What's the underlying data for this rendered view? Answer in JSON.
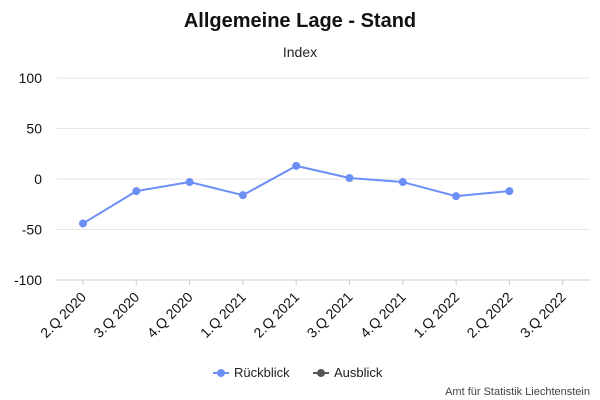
{
  "chart_data": {
    "type": "line",
    "title": "Allgemeine Lage - Stand",
    "subtitle": "Index",
    "categories": [
      "2.Q 2020",
      "3.Q 2020",
      "4.Q 2020",
      "1.Q 2021",
      "2.Q 2021",
      "3.Q 2021",
      "4.Q 2021",
      "1.Q 2022",
      "2.Q 2022",
      "3.Q 2022"
    ],
    "y_ticks": [
      "100",
      "50",
      "0",
      "-50",
      "-100"
    ],
    "ylim": [
      -100,
      100
    ],
    "grid": true,
    "legend_position": "bottom-center",
    "series": [
      {
        "name": "Rückblick",
        "color": "#6b8ff5",
        "values": [
          -44,
          -12,
          -3,
          -16,
          13,
          1,
          -3,
          -17,
          -12,
          null
        ]
      },
      {
        "name": "Ausblick",
        "color": "#555555",
        "values": [
          null,
          null,
          null,
          null,
          null,
          null,
          null,
          null,
          null,
          null
        ]
      }
    ]
  },
  "credit": "Amt für Statistik Liechtenstein"
}
